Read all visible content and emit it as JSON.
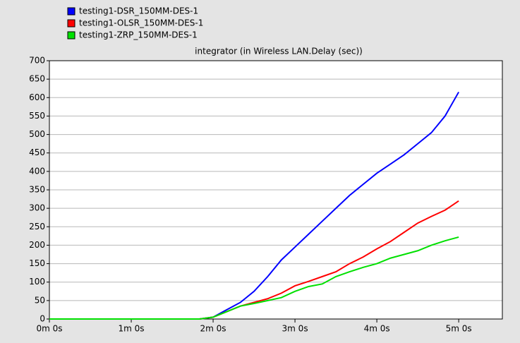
{
  "chart_data": {
    "type": "line",
    "title": "integrator (in Wireless LAN.Delay (sec))",
    "x": [
      0,
      10,
      20,
      30,
      40,
      50,
      60,
      70,
      80,
      90,
      100,
      110,
      120,
      130,
      140,
      150,
      160,
      170,
      180,
      190,
      200,
      210,
      220,
      230,
      240,
      250,
      260,
      270,
      280,
      290,
      300
    ],
    "series": [
      {
        "name": "testing1-DSR_150MM-DES-1",
        "color": "#0000ff",
        "values": [
          0,
          0,
          0,
          0,
          0,
          0,
          0,
          0,
          0,
          0,
          0,
          0,
          5,
          25,
          45,
          75,
          115,
          160,
          195,
          230,
          265,
          300,
          335,
          365,
          395,
          420,
          445,
          475,
          505,
          550,
          615
        ]
      },
      {
        "name": "testing1-OLSR_150MM-DES-1",
        "color": "#ff0000",
        "values": [
          0,
          0,
          0,
          0,
          0,
          0,
          0,
          0,
          0,
          0,
          0,
          0,
          5,
          20,
          35,
          45,
          55,
          70,
          90,
          102,
          115,
          128,
          150,
          168,
          190,
          210,
          235,
          260,
          278,
          295,
          320
        ]
      },
      {
        "name": "testing1-ZRP_150MM-DES-1",
        "color": "#00e000",
        "values": [
          0,
          0,
          0,
          0,
          0,
          0,
          0,
          0,
          0,
          0,
          0,
          0,
          5,
          20,
          35,
          42,
          50,
          58,
          75,
          88,
          95,
          115,
          128,
          140,
          150,
          165,
          175,
          185,
          200,
          212,
          222
        ]
      }
    ],
    "xlim": [
      0,
      332
    ],
    "xticks": [
      {
        "value": 0,
        "label": "0m 0s"
      },
      {
        "value": 60,
        "label": "1m 0s"
      },
      {
        "value": 120,
        "label": "2m 0s"
      },
      {
        "value": 180,
        "label": "3m 0s"
      },
      {
        "value": 240,
        "label": "4m 0s"
      },
      {
        "value": 300,
        "label": "5m 0s"
      }
    ],
    "ylim": [
      0,
      700
    ],
    "yticks": [
      0,
      50,
      100,
      150,
      200,
      250,
      300,
      350,
      400,
      450,
      500,
      550,
      600,
      650,
      700
    ],
    "grid": true
  }
}
